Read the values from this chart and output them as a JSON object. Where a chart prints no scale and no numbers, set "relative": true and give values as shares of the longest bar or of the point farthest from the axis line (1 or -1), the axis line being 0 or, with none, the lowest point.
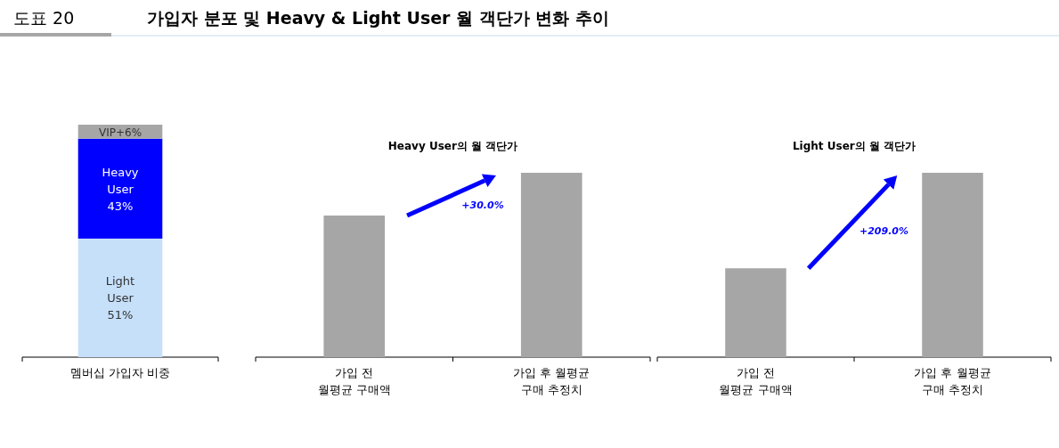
{
  "chart_data": [
    {
      "type": "other",
      "title": "도표 20",
      "subtitle": "가입자 분포 및 Heavy & Light User 월 객단가 변화 추이"
    },
    {
      "type": "bar",
      "stacked": true,
      "categories": [
        "멤버십 가입자 비중"
      ],
      "series": [
        {
          "name": "Light User",
          "color": "#c6e0fa",
          "values": [
            51
          ],
          "value_labels": [
            "51%"
          ]
        },
        {
          "name": "Heavy User",
          "color": "#0000ff",
          "values": [
            43
          ],
          "value_labels": [
            "43%"
          ]
        },
        {
          "name": "VIP",
          "color": "#a6a6a6",
          "values": [
            6
          ],
          "value_labels": [
            "+6%"
          ]
        }
      ]
    },
    {
      "type": "bar",
      "relative": true,
      "title": "Heavy User의 월 객단가",
      "categories": [
        "가입 전\n월평균 구매액",
        "가입 후 월평균\n구매 추정치"
      ],
      "values": [
        0.768,
        1
      ],
      "color": "#a6a6a6",
      "annotations": [
        "+30.0%"
      ]
    },
    {
      "type": "bar",
      "relative": true,
      "title": "Light User의 월 객단가",
      "categories": [
        "가입 전\n월평균 구매액",
        "가입 후 월평균\n구매 추정치"
      ],
      "values": [
        0.482,
        1
      ],
      "color": "#a6a6a6",
      "annotations": [
        "+209.0%"
      ]
    }
  ]
}
